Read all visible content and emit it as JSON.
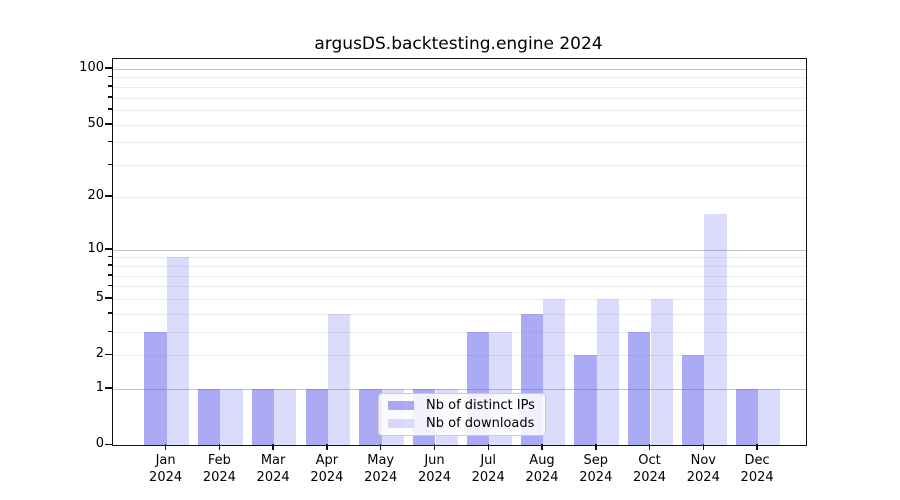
{
  "title": "argusDS.backtesting.engine 2024",
  "chart_data": {
    "type": "bar",
    "title": "argusDS.backtesting.engine 2024",
    "categories": [
      "Jan",
      "Feb",
      "Mar",
      "Apr",
      "May",
      "Jun",
      "Jul",
      "Aug",
      "Sep",
      "Oct",
      "Nov",
      "Dec"
    ],
    "year_label": "2024",
    "series": [
      {
        "name": "Nb of distinct IPs",
        "color": "rgba(85,85,235,0.5)",
        "values": [
          3,
          1,
          1,
          1,
          1,
          1,
          3,
          4,
          2,
          3,
          2,
          1
        ]
      },
      {
        "name": "Nb of downloads",
        "color": "rgba(85,85,235,0.21)",
        "values": [
          9,
          1,
          1,
          4,
          1,
          1,
          3,
          5,
          5,
          5,
          16,
          1
        ]
      }
    ],
    "xlabel": "",
    "ylabel": "",
    "yticks": [
      0,
      1,
      2,
      5,
      10,
      20,
      50,
      100
    ],
    "major_grid_values": [
      1,
      10,
      100
    ],
    "minor_yticks": [
      3,
      4,
      6,
      7,
      8,
      9,
      30,
      40,
      60,
      70,
      80,
      90
    ],
    "scale": "log10(value+1)",
    "ylim": [
      0,
      110
    ],
    "grid": true,
    "legend_position": "lower center"
  }
}
